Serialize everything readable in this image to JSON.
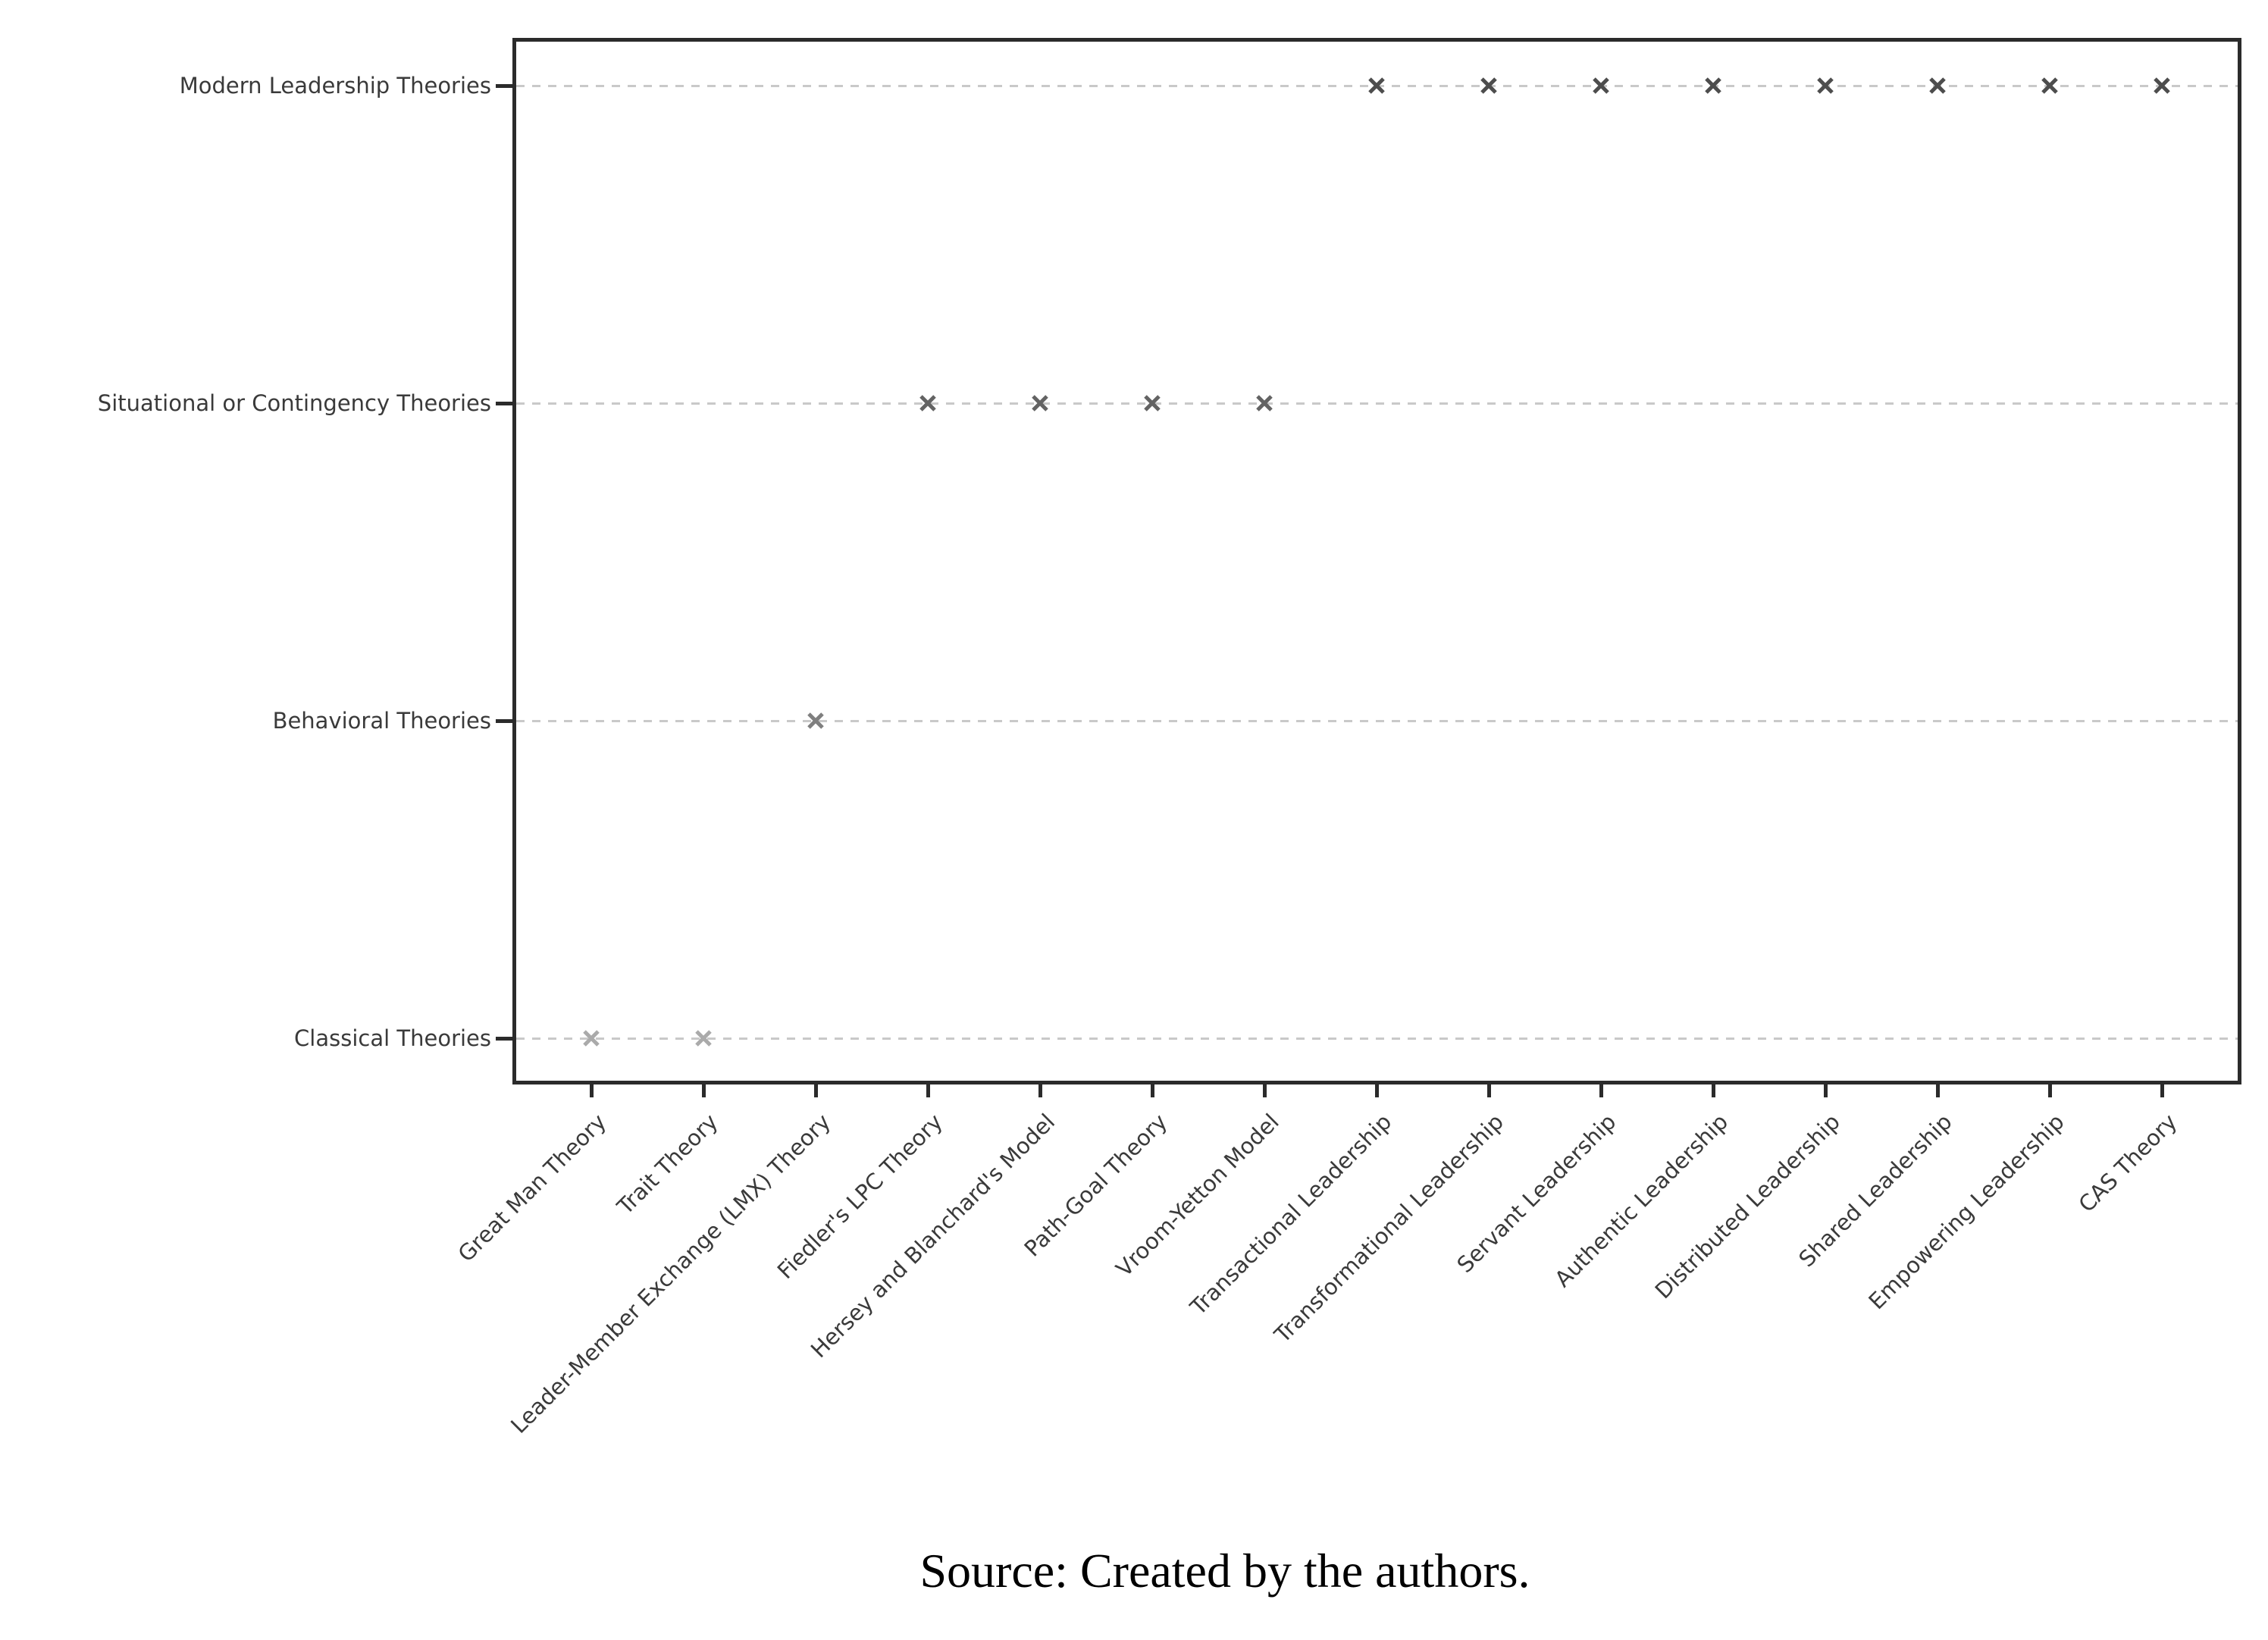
{
  "figure": {
    "caption": "Source: Created by the authors."
  },
  "chart_data": {
    "type": "scatter",
    "title": "",
    "xlabel": "",
    "ylabel": "",
    "marker": "x",
    "grid": "horizontal dashed",
    "legend": "none",
    "x_categories": [
      "Great Man Theory",
      "Trait Theory",
      "Leader-Member Exchange (LMX) Theory",
      "Fiedler's LPC Theory",
      "Hersey and Blanchard's Model",
      "Path-Goal Theory",
      "Vroom-Yetton Model",
      "Transactional Leadership",
      "Transformational Leadership",
      "Servant Leadership",
      "Authentic Leadership",
      "Distributed Leadership",
      "Shared Leadership",
      "Empowering Leadership",
      "CAS Theory"
    ],
    "y_categories_top_to_bottom": [
      "Modern Leadership Theories",
      "Situational or Contingency Theories",
      "Behavioral Theories",
      "Classical Theories"
    ],
    "row_colors": {
      "Modern Leadership Theories": "#4d4d4d",
      "Situational or Contingency Theories": "#636363",
      "Behavioral Theories": "#7f7f7f",
      "Classical Theories": "#aaaaaa"
    },
    "points": [
      {
        "x": "Great Man Theory",
        "y": "Classical Theories"
      },
      {
        "x": "Trait Theory",
        "y": "Classical Theories"
      },
      {
        "x": "Leader-Member Exchange (LMX) Theory",
        "y": "Behavioral Theories"
      },
      {
        "x": "Fiedler's LPC Theory",
        "y": "Situational or Contingency Theories"
      },
      {
        "x": "Hersey and Blanchard's Model",
        "y": "Situational or Contingency Theories"
      },
      {
        "x": "Path-Goal Theory",
        "y": "Situational or Contingency Theories"
      },
      {
        "x": "Vroom-Yetton Model",
        "y": "Situational or Contingency Theories"
      },
      {
        "x": "Transactional Leadership",
        "y": "Modern Leadership Theories"
      },
      {
        "x": "Transformational Leadership",
        "y": "Modern Leadership Theories"
      },
      {
        "x": "Servant Leadership",
        "y": "Modern Leadership Theories"
      },
      {
        "x": "Authentic Leadership",
        "y": "Modern Leadership Theories"
      },
      {
        "x": "Distributed Leadership",
        "y": "Modern Leadership Theories"
      },
      {
        "x": "Shared Leadership",
        "y": "Modern Leadership Theories"
      },
      {
        "x": "Empowering Leadership",
        "y": "Modern Leadership Theories"
      },
      {
        "x": "CAS Theory",
        "y": "Modern Leadership Theories"
      }
    ]
  }
}
